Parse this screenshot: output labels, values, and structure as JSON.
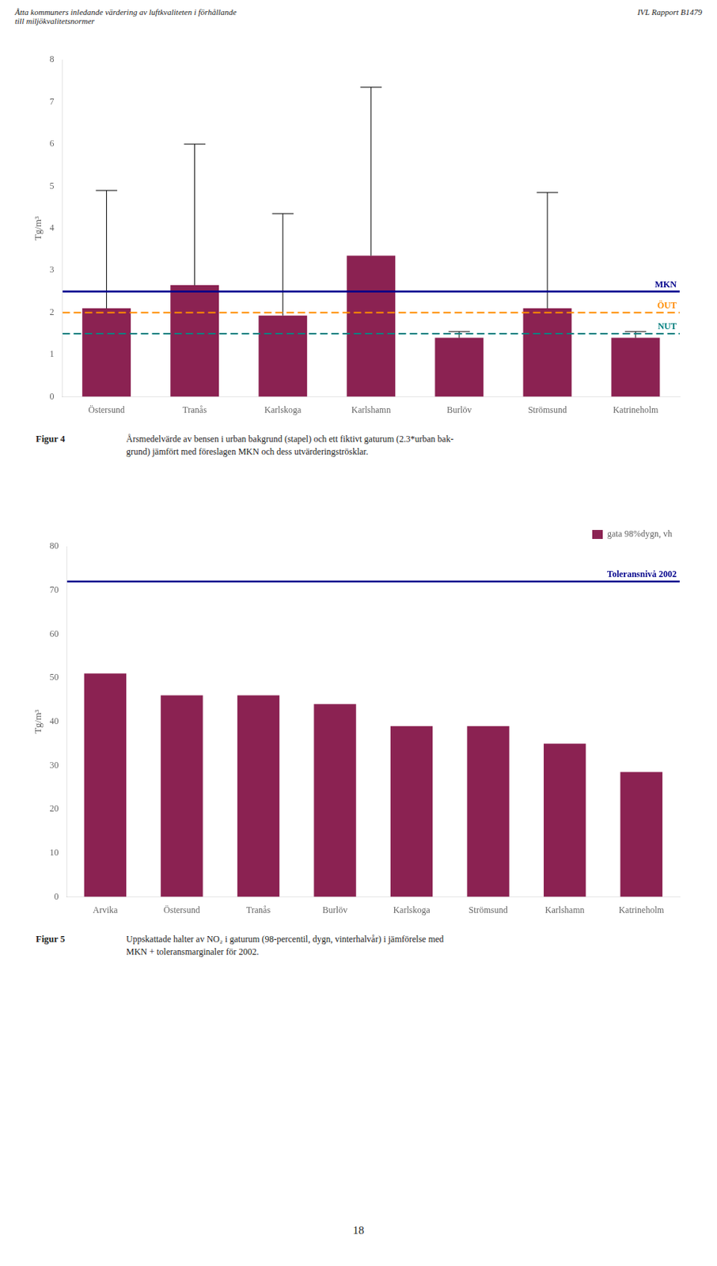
{
  "header": [
    "Åtta kommuners inledande värdering av luftkvaliteten i förhållande\ntill miljökvalitetsnormer",
    "IVL Rapport B1479"
  ],
  "page_number": "18",
  "chart_data": [
    {
      "type": "bar",
      "ylabel": "Tg/m³",
      "categories": [
        "Östersund",
        "Tranås",
        "Karlskoga",
        "Karlshamn",
        "Burlöv",
        "Strömsund",
        "Katrineholm"
      ],
      "values": [
        2.1,
        2.65,
        1.93,
        3.35,
        1.4,
        2.1,
        1.4
      ],
      "color": "#8B2252",
      "error_upper": [
        4.9,
        6.0,
        4.35,
        7.35,
        1.55,
        4.85,
        1.55
      ],
      "ylim": [
        0,
        8
      ],
      "yticks": [
        0,
        1,
        2,
        3,
        4,
        5,
        6,
        7,
        8
      ],
      "grid": false,
      "reference_lines": [
        {
          "value": 2.5,
          "label": "MKN",
          "color": "#00008B",
          "line_style": "solid"
        },
        {
          "value": 2.0,
          "label": "ÖUT",
          "color": "#FF8C00",
          "line_style": "dashed"
        },
        {
          "value": 1.5,
          "label": "NUT",
          "color": "#008080",
          "line_style": "dashed"
        }
      ],
      "caption_label": "Figur 4",
      "caption": "Årsmedelvärde av bensen i urban bakgrund (stapel) och ett fiktivt gaturum (2.3*urban bak-\ngrund) jämfört med föreslagen MKN och dess utvärderingströsklar."
    },
    {
      "type": "bar",
      "ylabel": "Tg/m³",
      "categories": [
        "Arvika",
        "Östersund",
        "Tranås",
        "Burlöv",
        "Karlskoga",
        "Strömsund",
        "Karlshamn",
        "Katrineholm"
      ],
      "series": [
        {
          "name": "gata 98%dygn, vh",
          "color": "#8B2252",
          "values": [
            51,
            46,
            46,
            44,
            39,
            39,
            35,
            28.5
          ]
        }
      ],
      "ylim": [
        0,
        80
      ],
      "yticks": [
        0,
        10,
        20,
        30,
        40,
        50,
        60,
        70,
        80
      ],
      "grid": false,
      "legend": "upper right",
      "reference_lines": [
        {
          "value": 72,
          "label": "Toleransnivå 2002",
          "color": "#00008B",
          "line_style": "solid"
        }
      ],
      "caption_label": "Figur 5",
      "caption": "Uppskattade halter av NO₂ i gaturum (98-percentil, dygn, vinterhalvår) i jämförelse med\nMKN + toleransmarginaler för 2002."
    }
  ]
}
